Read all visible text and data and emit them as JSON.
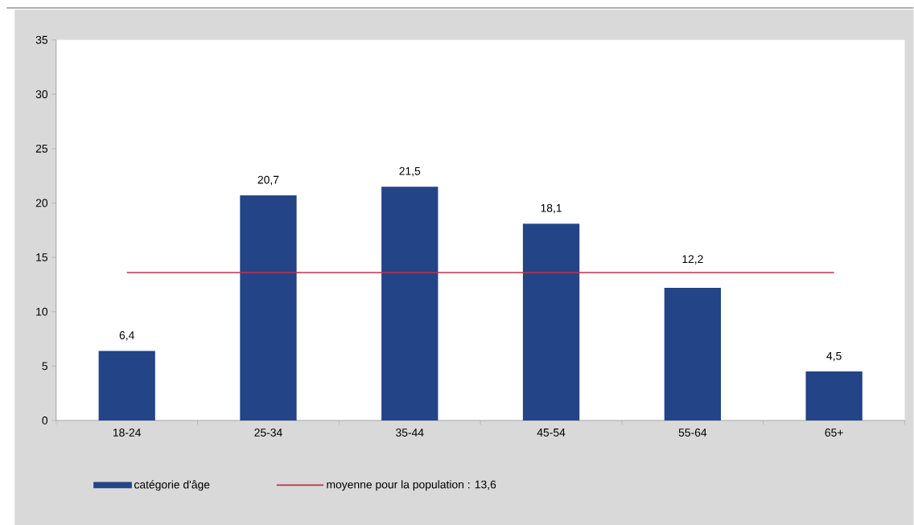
{
  "chart_data": {
    "type": "bar",
    "categories": [
      "18-24",
      "25-34",
      "35-44",
      "45-54",
      "55-64",
      "65+"
    ],
    "series": [
      {
        "name": "catégorie d'âge",
        "color": "#234486",
        "values": [
          6.4,
          20.7,
          21.5,
          18.1,
          12.2,
          4.5
        ],
        "value_labels": [
          "6,4",
          "20,7",
          "21,5",
          "18,1",
          "12,2",
          "4,5"
        ]
      }
    ],
    "ylim": [
      0,
      35
    ],
    "yticks": [
      0,
      5,
      10,
      15,
      20,
      25,
      30,
      35
    ],
    "ref_lines": [
      {
        "axis": "y",
        "value": 13.6,
        "label": "moyenne pour la population : 13,6",
        "color": "#c0304a"
      }
    ],
    "grid": false,
    "legend": "bottom"
  }
}
